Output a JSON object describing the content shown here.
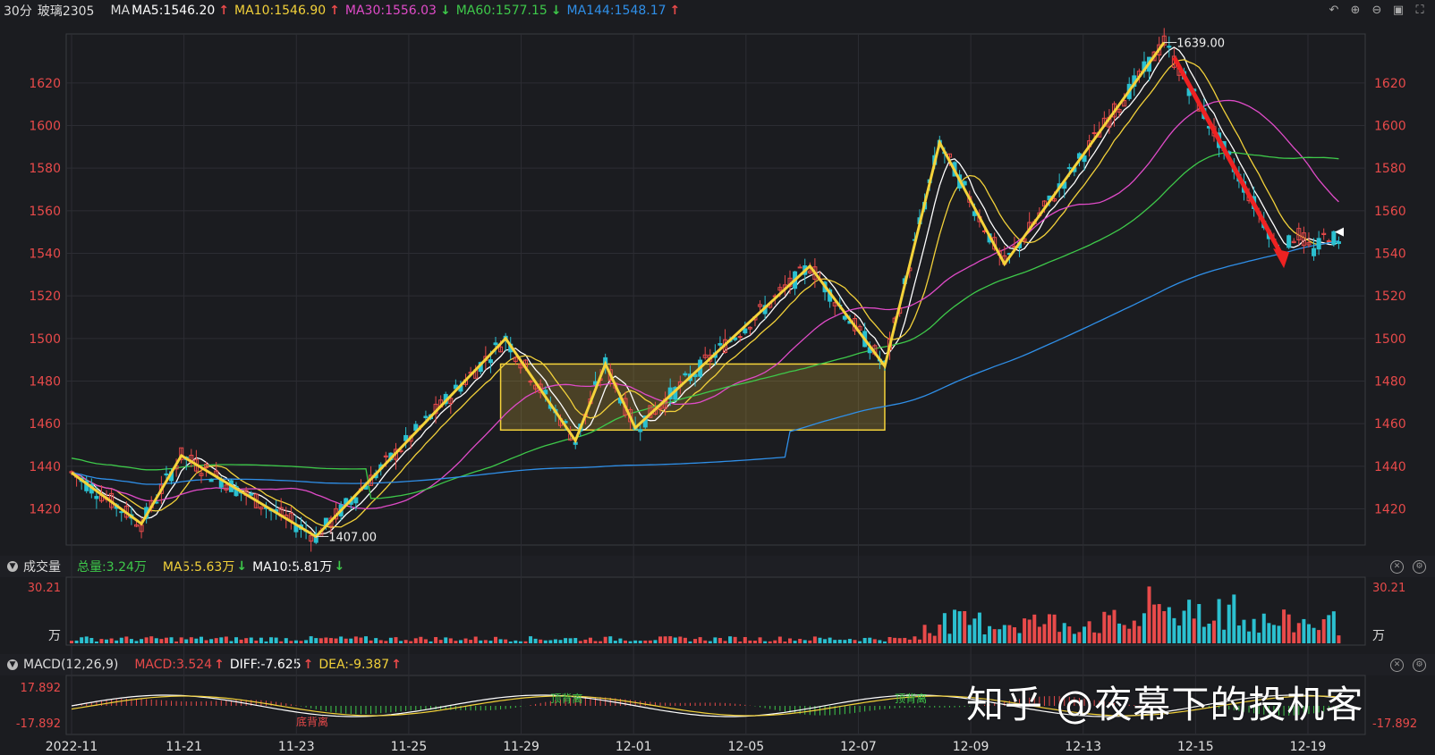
{
  "header": {
    "period": "30分",
    "symbol": "玻璃2305",
    "ma_label": "MA",
    "ma5": "MA5:1546.20",
    "ma10": "MA10:1546.90",
    "ma30": "MA30:1556.03",
    "ma60": "MA60:1577.15",
    "ma144": "MA144:1548.17",
    "arrows": [
      "↑",
      "↑",
      "↓",
      "↓",
      "↑"
    ],
    "icons": [
      "undo-icon",
      "zoom-in-icon",
      "zoom-out-icon",
      "layout-icon",
      "expand-icon"
    ]
  },
  "volume_panel": {
    "title": "成交量",
    "total": "总量:3.24万",
    "ma5": "MA5:5.63万",
    "ma10": "MA10:5.81万",
    "arrows": [
      "↓",
      "↓"
    ],
    "axis_top": "30.21",
    "axis_unit": "万"
  },
  "macd_panel": {
    "title": "MACD(12,26,9)",
    "macd": "MACD:3.524",
    "diff": "DIFF:-7.625",
    "dea": "DEA:-9.387",
    "arrows": [
      "↑",
      "↑",
      "↑"
    ],
    "axis_top": "17.892",
    "axis_bottom": "-17.892",
    "annotations": [
      "底背离",
      "顶背离",
      "顶背离"
    ]
  },
  "colors": {
    "up": "#e84a4a",
    "down": "#2bc0d0",
    "ma5": "#ffffff",
    "ma10": "#f2d13a",
    "ma30": "#e04bc8",
    "ma60": "#3ec94a",
    "ma144": "#2f8fe8",
    "zigzag": "#f5d33a",
    "arrow": "#ee2222"
  },
  "watermark": "知乎 @夜幕下的投机客",
  "chart_data": {
    "type": "candlestick",
    "y_ticks": [
      1620,
      1600,
      1580,
      1560,
      1540,
      1520,
      1500,
      1480,
      1460,
      1440,
      1420
    ],
    "ylim": [
      1403,
      1643
    ],
    "x_ticks": [
      "2022-11",
      "11-21",
      "11-23",
      "11-25",
      "11-29",
      "12-01",
      "12-05",
      "12-07",
      "12-09",
      "12-13",
      "12-15",
      "12-19"
    ],
    "high_label": "1639.00",
    "low_label": "1407.00",
    "current_marker": 1550,
    "zigzag_turning_points": [
      {
        "i": 0,
        "v": 1437
      },
      {
        "i": 14,
        "v": 1413
      },
      {
        "i": 22,
        "v": 1445
      },
      {
        "i": 49,
        "v": 1407
      },
      {
        "i": 87,
        "v": 1500
      },
      {
        "i": 101,
        "v": 1452
      },
      {
        "i": 107,
        "v": 1488
      },
      {
        "i": 113,
        "v": 1458
      },
      {
        "i": 148,
        "v": 1534
      },
      {
        "i": 163,
        "v": 1487
      },
      {
        "i": 174,
        "v": 1592
      },
      {
        "i": 187,
        "v": 1535
      },
      {
        "i": 219,
        "v": 1639
      }
    ],
    "consolidation_box": {
      "i_start": 86,
      "i_end": 163,
      "top": 1488,
      "bottom": 1457
    },
    "trend_arrow": {
      "i_start": 221,
      "v_start": 1632,
      "i_end": 243,
      "v_end": 1533
    }
  }
}
